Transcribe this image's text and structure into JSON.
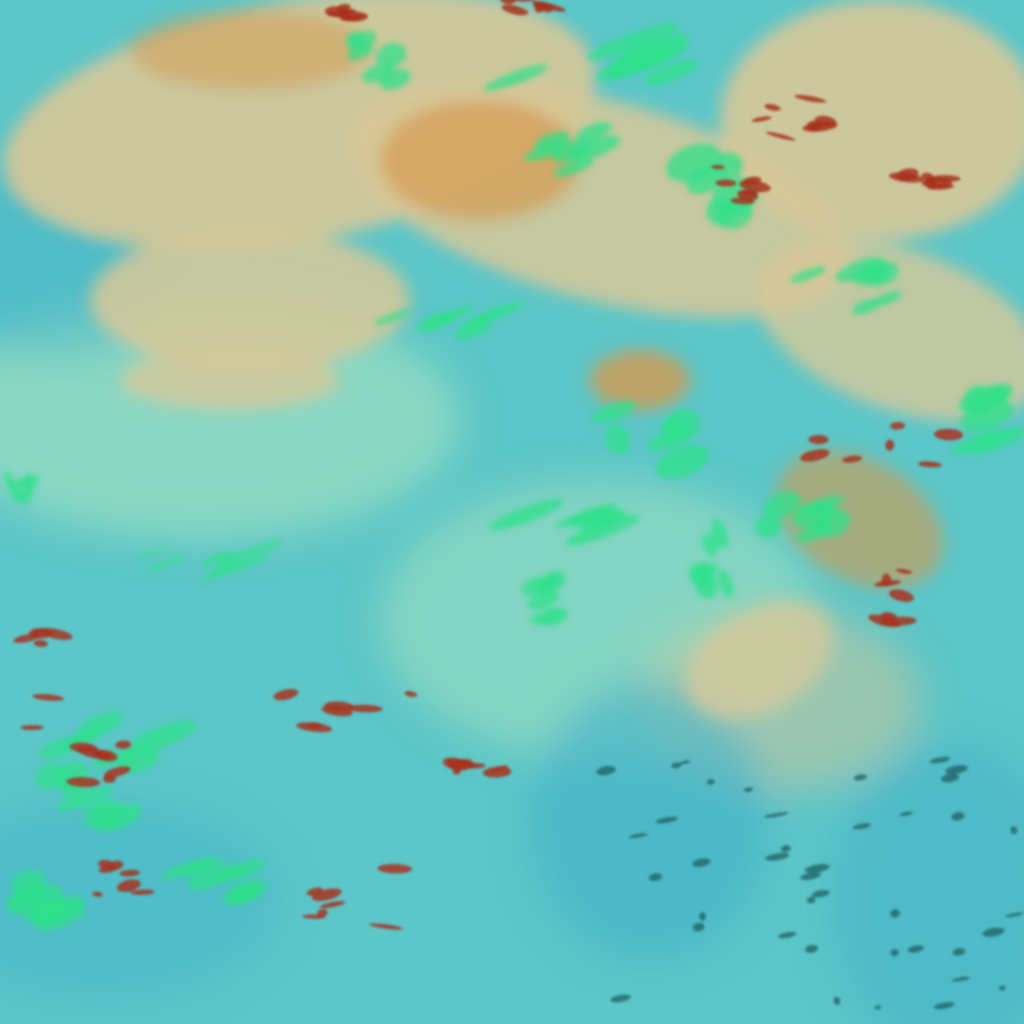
{
  "image": {
    "kind": "false-color satellite cloud imagery",
    "colors": {
      "ocean_base": "#5cc6c8",
      "deep_water": "#3fb0c8",
      "thin_cloud_tan": "#d8c898",
      "high_cloud_orange": "#d49a50",
      "convective_red": "#a8321e",
      "cloud_edge_green": "#2fe08a",
      "haze_pale": "#9ee0c0"
    }
  }
}
